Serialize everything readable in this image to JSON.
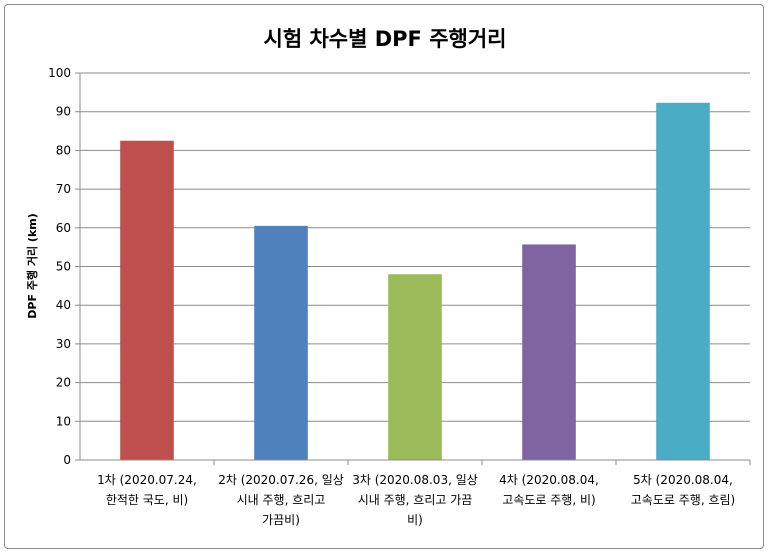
{
  "chart_data": {
    "type": "bar",
    "title": "시험 차수별 DPF 주행거리",
    "xlabel": "",
    "ylabel": "DPF 주행 거리 (km)",
    "ylim": [
      0,
      100
    ],
    "yticks": [
      0,
      10,
      20,
      30,
      40,
      50,
      60,
      70,
      80,
      90,
      100
    ],
    "grid": true,
    "legend": "none",
    "categories": [
      [
        "1차 (2020.07.24,",
        "한적한 국도, 비)"
      ],
      [
        "2차 (2020.07.26, 일상",
        "시내 주행, 흐리고",
        "가끔비)"
      ],
      [
        "3차 (2020.08.03, 일상",
        "시내 주행, 흐리고 가끔",
        "비)"
      ],
      [
        "4차 (2020.08.04,",
        "고속도로 주행, 비)"
      ],
      [
        "5차 (2020.08.04,",
        "고속도로 주행, 흐림)"
      ]
    ],
    "values": [
      82.5,
      60.5,
      48,
      55.7,
      92.3
    ],
    "colors": [
      "#c0504d",
      "#4f81bd",
      "#9bbb59",
      "#8064a2",
      "#4bacc6"
    ]
  }
}
